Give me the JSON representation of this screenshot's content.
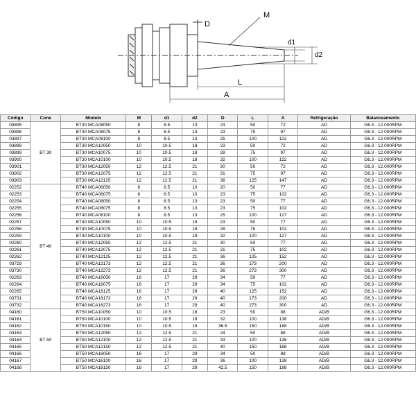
{
  "diagram": {
    "labels": {
      "M": "M",
      "D": "D",
      "d1": "d1",
      "d2": "d2",
      "L": "L",
      "A": "A"
    }
  },
  "table": {
    "columns": [
      "Código",
      "Cone",
      "Modelo",
      "M",
      "d1",
      "d2",
      "D",
      "L",
      "A",
      "Refrigeração",
      "Balanceamento"
    ],
    "cone_groups": [
      {
        "cone": "BT 30",
        "span": 9,
        "start": 0
      },
      {
        "cone": "BT 40",
        "span": 18,
        "start": 9
      },
      {
        "cone": "BT 50",
        "span": 9,
        "start": 27
      }
    ],
    "rows": [
      [
        "03895",
        "BT30 MCA08050",
        "8",
        "8.5",
        "13",
        "23",
        "50",
        "72",
        "AD",
        "G6.3 - 12.000RPM"
      ],
      [
        "03896",
        "BT30 MCA08075",
        "8",
        "8.5",
        "13",
        "23",
        "75",
        "97",
        "AD",
        "G6.3 - 12.000RPM"
      ],
      [
        "03897",
        "BT30 MCA08100",
        "8",
        "8.5",
        "13",
        "25",
        "100",
        "122",
        "AD",
        "G6.3 - 12.000RPM"
      ],
      [
        "03898",
        "BT30 MCA10050",
        "10",
        "10.5",
        "18",
        "23",
        "50",
        "72",
        "AD",
        "G6.3 - 12.000RPM"
      ],
      [
        "03899",
        "BT30 MCA10075",
        "10",
        "10.5",
        "18",
        "28",
        "75",
        "97",
        "AD",
        "G6.3 - 12.000RPM"
      ],
      [
        "03900",
        "BT30 MCA10100",
        "10",
        "10.5",
        "18",
        "32",
        "100",
        "122",
        "AD",
        "G6.3 - 12.000RPM"
      ],
      [
        "03901",
        "BT30 MCA12050",
        "12",
        "12.5",
        "21",
        "30",
        "50",
        "72",
        "AD",
        "G6.3 - 12.000RPM"
      ],
      [
        "03902",
        "BT30 MCA12075",
        "12",
        "12.5",
        "21",
        "31",
        "75",
        "97",
        "AD",
        "G6.3 - 12.000RPM"
      ],
      [
        "03903",
        "BT30 MCA12125",
        "12",
        "12.5",
        "21",
        "36",
        "125",
        "147",
        "AD",
        "G6.3 - 12.000RPM"
      ],
      [
        "02252",
        "BT40 MCA06050",
        "6",
        "6.5",
        "10",
        "20",
        "50",
        "77",
        "AD",
        "G6.3 - 12.000RPM"
      ],
      [
        "02253",
        "BT40 MCA06075",
        "6",
        "6.5",
        "10",
        "23",
        "75",
        "102",
        "AD",
        "G6.3 - 12.000RPM"
      ],
      [
        "02254",
        "BT40 MCA08050",
        "8",
        "8.5",
        "13",
        "23",
        "50",
        "77",
        "AD",
        "G6.3 - 12.000RPM"
      ],
      [
        "02255",
        "BT40 MCA08075",
        "8",
        "8.5",
        "13",
        "23",
        "75",
        "102",
        "AD",
        "G6.3 - 12.000RPM"
      ],
      [
        "02256",
        "BT40 MCA08100",
        "8",
        "8.5",
        "13",
        "25",
        "100",
        "127",
        "AD",
        "G6.3 - 12.000RPM"
      ],
      [
        "02257",
        "BT40 MCA10050",
        "10",
        "10.5",
        "18",
        "23",
        "50",
        "77",
        "AD",
        "G6.3 - 12.000RPM"
      ],
      [
        "02258",
        "BT40 MCA10075",
        "10",
        "10.5",
        "18",
        "28",
        "75",
        "102",
        "AD",
        "G6.3 - 12.000RPM"
      ],
      [
        "02259",
        "BT40 MCA10100",
        "10",
        "10.5",
        "18",
        "32",
        "100",
        "127",
        "AD",
        "G6.3 - 12.000RPM"
      ],
      [
        "02260",
        "BT40 MCA12050",
        "12",
        "12.5",
        "21",
        "30",
        "50",
        "77",
        "AD",
        "G6.3 - 12.000RPM"
      ],
      [
        "02261",
        "BT40 MCA12075",
        "12",
        "12.5",
        "21",
        "31",
        "75",
        "102",
        "AD",
        "G6.3 - 12.000RPM"
      ],
      [
        "02262",
        "BT40 MCA12125",
        "12",
        "12.5",
        "21",
        "36",
        "125",
        "152",
        "AD",
        "G6.3 - 12.000RPM"
      ],
      [
        "03729",
        "BT40 MCA12173",
        "12",
        "12.5",
        "21",
        "36",
        "173",
        "200",
        "AD",
        "G6.3 - 12.000RPM"
      ],
      [
        "03730",
        "BT40 MCA12273",
        "12",
        "12.5",
        "21",
        "36",
        "273",
        "300",
        "AD",
        "G6.3 - 12.000RPM"
      ],
      [
        "02263",
        "BT40 MCA16050",
        "16",
        "17",
        "29",
        "34",
        "50",
        "77",
        "AD",
        "G6.3 - 12.000RPM"
      ],
      [
        "02264",
        "BT40 MCA16075",
        "16",
        "17",
        "29",
        "34",
        "75",
        "102",
        "AD",
        "G6.3 - 12.000RPM"
      ],
      [
        "02265",
        "BT40 MCA16125",
        "16",
        "17",
        "29",
        "40",
        "125",
        "152",
        "AD",
        "G6.3 - 12.000RPM"
      ],
      [
        "03731",
        "BT40 MCA16173",
        "16",
        "17",
        "29",
        "40",
        "173",
        "200",
        "AD",
        "G6.3 - 12.000RPM"
      ],
      [
        "03732",
        "BT40 MCA16273",
        "16",
        "17",
        "29",
        "40",
        "273",
        "300",
        "AD",
        "G6.3 - 12.000RPM"
      ],
      [
        "04160",
        "BT50 MCA10050",
        "10",
        "10.5",
        "18",
        "23",
        "50",
        "88",
        "AD/B",
        "G6.3 - 12.000RPM"
      ],
      [
        "04161",
        "BT50 MCA10100",
        "10",
        "10.5",
        "18",
        "32",
        "100",
        "138",
        "AD/B",
        "G6.3 - 12.000RPM"
      ],
      [
        "04162",
        "BT50 MCA10150",
        "10",
        "10.5",
        "18",
        "36.5",
        "150",
        "188",
        "AD/B",
        "G6.3 - 12.000RPM"
      ],
      [
        "04163",
        "BT50 MCA12050",
        "12",
        "12.5",
        "21",
        "24",
        "50",
        "88",
        "AD/B",
        "G6.3 - 12.000RPM"
      ],
      [
        "04164",
        "BT50 MCA12100",
        "12",
        "12.5",
        "21",
        "33",
        "100",
        "138",
        "AD/B",
        "G6.3 - 12.000RPM"
      ],
      [
        "04165",
        "BT50 MCA12150",
        "12",
        "12.5",
        "21",
        "40",
        "150",
        "188",
        "AD/B",
        "G6.3 - 12.000RPM"
      ],
      [
        "04166",
        "BT50 MCA16050",
        "16",
        "17",
        "29",
        "34",
        "50",
        "88",
        "AD/B",
        "G6.3 - 12.000RPM"
      ],
      [
        "04167",
        "BT50 MCA16100",
        "16",
        "17",
        "29",
        "36",
        "100",
        "138",
        "AD/B",
        "G6.3 - 12.000RPM"
      ],
      [
        "04168",
        "BT50 MCA16150",
        "16",
        "17",
        "29",
        "42.5",
        "150",
        "188",
        "AD/B",
        "G6.3 - 12.000RPM"
      ]
    ]
  }
}
